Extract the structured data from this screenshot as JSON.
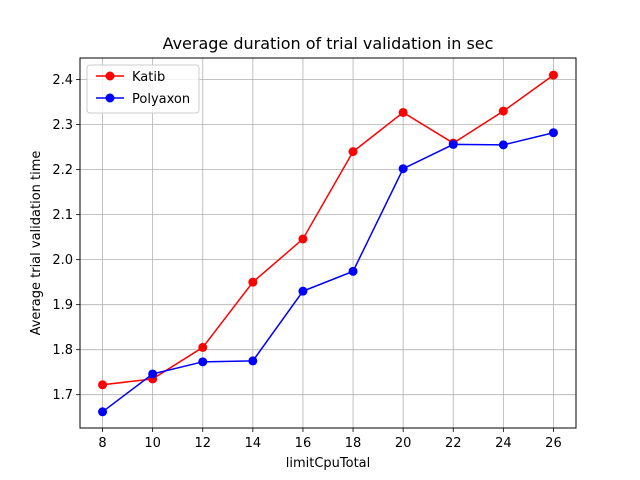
{
  "chart_data": {
    "type": "line",
    "title": "Average duration of trial validation in sec",
    "xlabel": "limitCpuTotal",
    "ylabel": "Average trial validation time",
    "x": [
      8,
      10,
      12,
      14,
      16,
      18,
      20,
      22,
      24,
      26
    ],
    "xticks": [
      8,
      10,
      12,
      14,
      16,
      18,
      20,
      22,
      24,
      26
    ],
    "yticks": [
      1.7,
      1.8,
      1.9,
      2.0,
      2.1,
      2.2,
      2.3,
      2.4
    ],
    "xlim": [
      7.1,
      26.9
    ],
    "ylim": [
      1.626,
      2.448
    ],
    "grid": true,
    "legend_position": "top-left",
    "series": [
      {
        "name": "Katib",
        "color": "#ff0000",
        "values": [
          1.722,
          1.735,
          1.805,
          1.95,
          2.046,
          2.24,
          2.327,
          2.259,
          2.33,
          2.41
        ]
      },
      {
        "name": "Polyaxon",
        "color": "#0000ff",
        "values": [
          1.662,
          1.746,
          1.773,
          1.775,
          1.93,
          1.974,
          2.202,
          2.256,
          2.255,
          2.282
        ]
      }
    ]
  }
}
